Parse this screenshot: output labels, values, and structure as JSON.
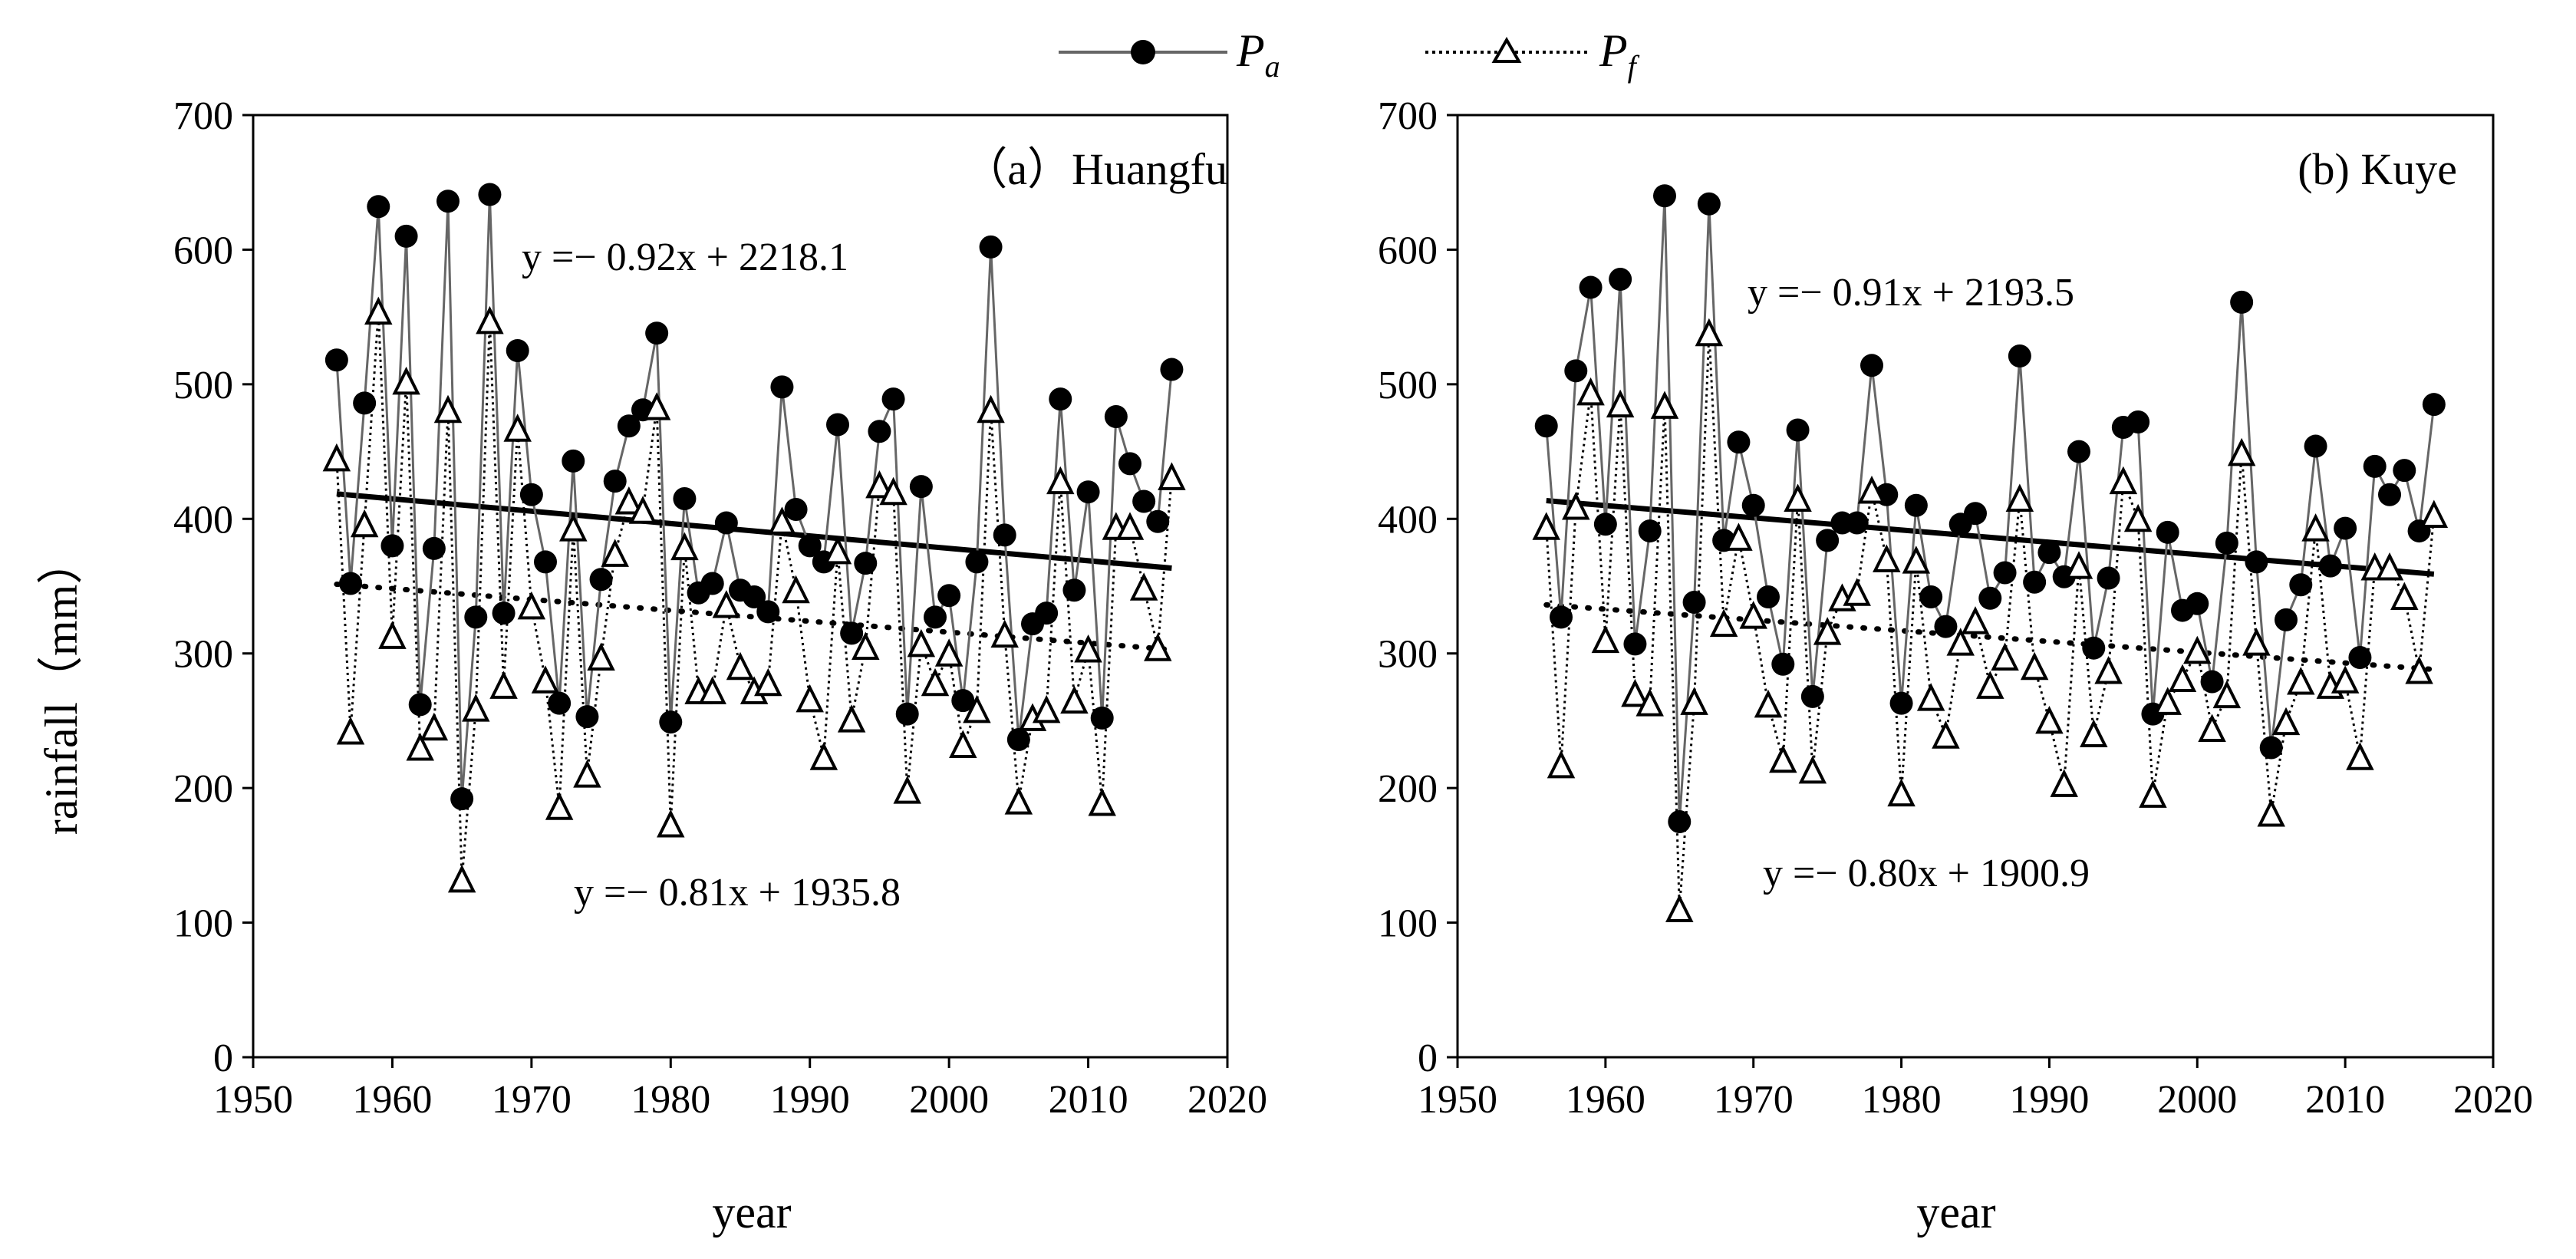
{
  "legend": {
    "pa": {
      "label": "P",
      "sub": "a"
    },
    "pf": {
      "label": "P",
      "sub": "f"
    }
  },
  "colors": {
    "pa_line": "#666666",
    "pf_line": "#000000",
    "trend": "#000000",
    "axis": "#000000"
  },
  "chart_data": [
    {
      "type": "line",
      "title": "（a）Huangfu",
      "xlabel": "year",
      "ylabel": "rainfall（mm）",
      "xlim": [
        1950,
        2020
      ],
      "ylim": [
        0,
        700
      ],
      "xticks": [
        1950,
        1960,
        1970,
        1980,
        1990,
        2000,
        2010,
        2020
      ],
      "yticks": [
        0,
        100,
        200,
        300,
        400,
        500,
        600,
        700
      ],
      "x": [
        1956,
        1957,
        1958,
        1959,
        1960,
        1961,
        1962,
        1963,
        1964,
        1965,
        1966,
        1967,
        1968,
        1969,
        1970,
        1971,
        1972,
        1973,
        1974,
        1975,
        1976,
        1977,
        1978,
        1979,
        1980,
        1981,
        1982,
        1983,
        1984,
        1985,
        1986,
        1987,
        1988,
        1989,
        1990,
        1991,
        1992,
        1993,
        1994,
        1995,
        1996,
        1997,
        1998,
        1999,
        2000,
        2001,
        2002,
        2003,
        2004,
        2005,
        2006,
        2007,
        2008,
        2009,
        2010,
        2011,
        2012,
        2013,
        2014,
        2015,
        2016
      ],
      "series": [
        {
          "name": "Pa",
          "marker": "circle",
          "values": [
            518,
            352,
            486,
            632,
            380,
            610,
            262,
            378,
            636,
            192,
            327,
            641,
            330,
            525,
            418,
            368,
            263,
            443,
            253,
            355,
            428,
            469,
            481,
            538,
            249,
            415,
            345,
            352,
            397,
            347,
            342,
            331,
            498,
            407,
            380,
            368,
            470,
            315,
            367,
            465,
            489,
            255,
            424,
            327,
            343,
            265,
            368,
            602,
            388,
            236,
            322,
            330,
            489,
            347,
            420,
            252,
            476,
            441,
            413,
            398,
            511
          ]
        },
        {
          "name": "Pf",
          "marker": "triangle",
          "values": [
            445,
            242,
            396,
            554,
            313,
            502,
            230,
            245,
            481,
            132,
            259,
            547,
            276,
            467,
            335,
            280,
            186,
            393,
            210,
            297,
            374,
            413,
            406,
            483,
            173,
            379,
            272,
            272,
            336,
            290,
            272,
            278,
            398,
            347,
            266,
            223,
            376,
            251,
            305,
            425,
            420,
            198,
            307,
            278,
            300,
            232,
            258,
            481,
            314,
            190,
            252,
            258,
            428,
            265,
            303,
            189,
            394,
            394,
            349,
            304,
            431
          ]
        }
      ],
      "trendlines": [
        {
          "series": "Pa",
          "equation": "y =− 0.92x + 2218.1",
          "slope": -0.92,
          "intercept": 2218.1,
          "x_range": [
            1956,
            2016
          ]
        },
        {
          "series": "Pf",
          "equation": "y =− 0.81x + 1935.8",
          "slope": -0.81,
          "intercept": 1935.8,
          "x_range": [
            1956,
            2016
          ]
        }
      ]
    },
    {
      "type": "line",
      "title": "(b) Kuye",
      "xlabel": "year",
      "ylabel": "",
      "xlim": [
        1950,
        2020
      ],
      "ylim": [
        0,
        700
      ],
      "xticks": [
        1950,
        1960,
        1970,
        1980,
        1990,
        2000,
        2010,
        2020
      ],
      "yticks": [
        0,
        100,
        200,
        300,
        400,
        500,
        600,
        700
      ],
      "x": [
        1956,
        1957,
        1958,
        1959,
        1960,
        1961,
        1962,
        1963,
        1964,
        1965,
        1966,
        1967,
        1968,
        1969,
        1970,
        1971,
        1972,
        1973,
        1974,
        1975,
        1976,
        1977,
        1978,
        1979,
        1980,
        1981,
        1982,
        1983,
        1984,
        1985,
        1986,
        1987,
        1988,
        1989,
        1990,
        1991,
        1992,
        1993,
        1994,
        1995,
        1996,
        1997,
        1998,
        1999,
        2000,
        2001,
        2002,
        2003,
        2004,
        2005,
        2006,
        2007,
        2008,
        2009,
        2010,
        2011,
        2012,
        2013,
        2014,
        2015,
        2016
      ],
      "series": [
        {
          "name": "Pa",
          "marker": "circle",
          "values": [
            469,
            327,
            510,
            572,
            396,
            578,
            307,
            391,
            640,
            175,
            338,
            634,
            384,
            457,
            410,
            342,
            292,
            466,
            268,
            384,
            397,
            397,
            514,
            418,
            263,
            410,
            342,
            320,
            396,
            404,
            341,
            360,
            521,
            353,
            375,
            357,
            450,
            304,
            356,
            468,
            472,
            255,
            390,
            332,
            337,
            279,
            382,
            561,
            368,
            230,
            325,
            351,
            454,
            365,
            393,
            297,
            439,
            418,
            436,
            391,
            485
          ]
        },
        {
          "name": "Pf",
          "marker": "triangle",
          "values": [
            394,
            217,
            409,
            494,
            310,
            485,
            270,
            263,
            484,
            110,
            264,
            538,
            322,
            386,
            328,
            262,
            221,
            415,
            213,
            316,
            341,
            345,
            421,
            370,
            196,
            369,
            267,
            239,
            308,
            324,
            276,
            297,
            415,
            290,
            250,
            203,
            365,
            240,
            287,
            428,
            400,
            195,
            264,
            281,
            302,
            244,
            269,
            449,
            308,
            181,
            249,
            279,
            393,
            276,
            280,
            223,
            364,
            364,
            342,
            287,
            403
          ]
        }
      ],
      "trendlines": [
        {
          "series": "Pa",
          "equation": "y =− 0.91x + 2193.5",
          "slope": -0.91,
          "intercept": 2193.5,
          "x_range": [
            1956,
            2016
          ]
        },
        {
          "series": "Pf",
          "equation": "y =− 0.80x + 1900.9",
          "slope": -0.8,
          "intercept": 1900.9,
          "x_range": [
            1956,
            2016
          ]
        }
      ]
    }
  ]
}
